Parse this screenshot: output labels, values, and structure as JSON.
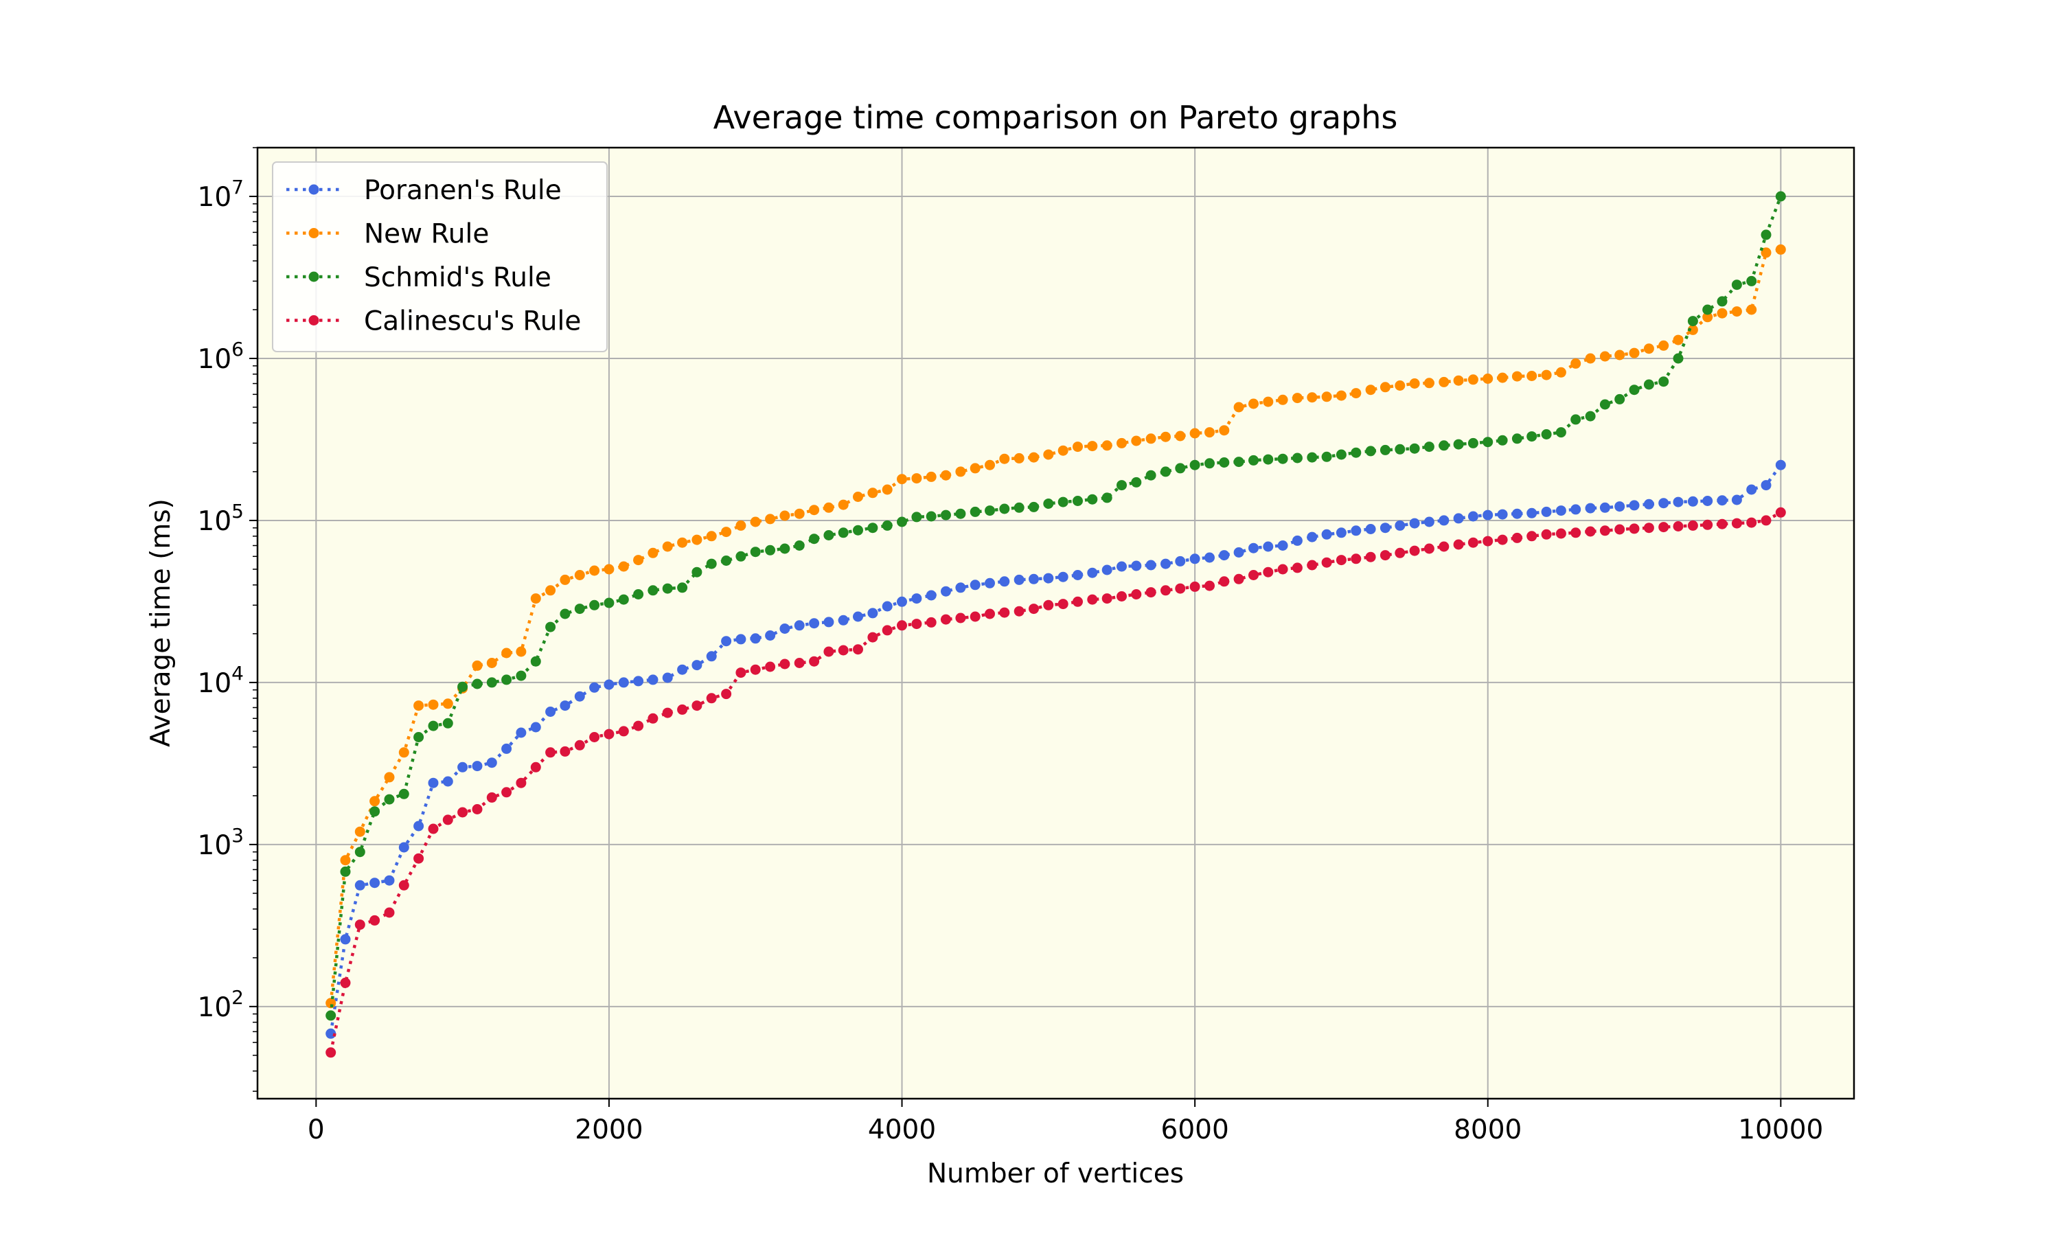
{
  "chart_data": {
    "type": "line",
    "title": "Average time comparison on Pareto graphs",
    "xlabel": "Number of vertices",
    "ylabel": "Average time (ms)",
    "y_scale": "log",
    "xlim": [
      -400,
      10500
    ],
    "ylim": [
      27,
      20000000
    ],
    "x_ticks": [
      0,
      2000,
      4000,
      6000,
      8000,
      10000
    ],
    "x_tick_labels": [
      "0",
      "2000",
      "4000",
      "6000",
      "8000",
      "10000"
    ],
    "y_ticks": [
      100,
      1000,
      10000,
      100000,
      1000000,
      10000000
    ],
    "y_tick_labels": [
      {
        "base": "10",
        "exp": "2"
      },
      {
        "base": "10",
        "exp": "3"
      },
      {
        "base": "10",
        "exp": "4"
      },
      {
        "base": "10",
        "exp": "5"
      },
      {
        "base": "10",
        "exp": "6"
      },
      {
        "base": "10",
        "exp": "7"
      }
    ],
    "grid": true,
    "legend_position": "top-left",
    "plot_background": "#fdfdeb",
    "x": [
      100,
      200,
      300,
      400,
      500,
      600,
      700,
      800,
      900,
      1000,
      1100,
      1200,
      1300,
      1400,
      1500,
      1600,
      1700,
      1800,
      1900,
      2000,
      2100,
      2200,
      2300,
      2400,
      2500,
      2600,
      2700,
      2800,
      2900,
      3000,
      3100,
      3200,
      3300,
      3400,
      3500,
      3600,
      3700,
      3800,
      3900,
      4000,
      4100,
      4200,
      4300,
      4400,
      4500,
      4600,
      4700,
      4800,
      4900,
      5000,
      5100,
      5200,
      5300,
      5400,
      5500,
      5600,
      5700,
      5800,
      5900,
      6000,
      6100,
      6200,
      6300,
      6400,
      6500,
      6600,
      6700,
      6800,
      6900,
      7000,
      7100,
      7200,
      7300,
      7400,
      7500,
      7600,
      7700,
      7800,
      7900,
      8000,
      8100,
      8200,
      8300,
      8400,
      8500,
      8600,
      8700,
      8800,
      8900,
      9000,
      9100,
      9200,
      9300,
      9400,
      9500,
      9600,
      9700,
      9800,
      9900,
      10000
    ],
    "series": [
      {
        "name": "Poranen's Rule",
        "color": "#4169e1",
        "values": [
          68,
          260,
          560,
          580,
          600,
          960,
          1300,
          2400,
          2450,
          3000,
          3050,
          3200,
          3900,
          4900,
          5300,
          6600,
          7200,
          8200,
          9300,
          9700,
          10000,
          10200,
          10400,
          10700,
          12000,
          12800,
          14500,
          18000,
          18500,
          18700,
          19500,
          21500,
          22500,
          23200,
          23600,
          24200,
          25500,
          26800,
          29500,
          31500,
          33000,
          34500,
          36500,
          38500,
          40000,
          41000,
          42000,
          43000,
          43500,
          44000,
          44800,
          46000,
          47500,
          49500,
          52000,
          52500,
          53000,
          54000,
          56000,
          58000,
          59000,
          61000,
          63500,
          67500,
          69000,
          70000,
          75000,
          79000,
          82000,
          84000,
          86500,
          88500,
          90000,
          93000,
          96000,
          98000,
          100000,
          103000,
          106000,
          108000,
          109000,
          110000,
          111000,
          113000,
          115000,
          117000,
          119000,
          120000,
          122000,
          124000,
          126000,
          128000,
          130000,
          131000,
          132000,
          133000,
          134000,
          155000,
          165000,
          220000
        ]
      },
      {
        "name": "New Rule",
        "color": "#ff8c00",
        "values": [
          105,
          800,
          1200,
          1850,
          2600,
          3700,
          7200,
          7300,
          7400,
          9200,
          12700,
          13200,
          15200,
          15500,
          33000,
          37000,
          43000,
          46000,
          49000,
          50000,
          52000,
          57000,
          63000,
          69000,
          73000,
          76000,
          80000,
          85000,
          93000,
          98000,
          102000,
          107000,
          110000,
          116000,
          120000,
          125000,
          140000,
          148000,
          155000,
          180000,
          182000,
          186000,
          190000,
          200000,
          210000,
          220000,
          240000,
          242000,
          245000,
          255000,
          270000,
          285000,
          288000,
          290000,
          300000,
          310000,
          320000,
          328000,
          332000,
          345000,
          350000,
          360000,
          500000,
          525000,
          540000,
          555000,
          570000,
          575000,
          580000,
          590000,
          610000,
          640000,
          665000,
          680000,
          700000,
          705000,
          715000,
          730000,
          740000,
          750000,
          760000,
          775000,
          780000,
          790000,
          820000,
          930000,
          1000000,
          1030000,
          1050000,
          1080000,
          1150000,
          1200000,
          1300000,
          1500000,
          1800000,
          1900000,
          1950000,
          2000000,
          4500000,
          4700000
        ]
      },
      {
        "name": "Schmid's Rule",
        "color": "#228b22",
        "values": [
          88,
          680,
          900,
          1600,
          1900,
          2050,
          4600,
          5400,
          5600,
          9400,
          9800,
          10000,
          10400,
          11000,
          13500,
          22000,
          26500,
          28500,
          30000,
          31000,
          32500,
          35000,
          37000,
          38000,
          38500,
          48000,
          54000,
          56500,
          60000,
          64000,
          65500,
          67000,
          70000,
          77000,
          81000,
          84000,
          87000,
          90000,
          93000,
          98000,
          105000,
          106000,
          108000,
          110000,
          113000,
          115000,
          118000,
          120000,
          121000,
          127000,
          130000,
          132000,
          135000,
          138000,
          165000,
          172000,
          190000,
          200000,
          210000,
          220000,
          225000,
          228000,
          230000,
          235000,
          238000,
          240000,
          243000,
          245000,
          247000,
          255000,
          262000,
          268000,
          272000,
          275000,
          278000,
          285000,
          290000,
          295000,
          300000,
          305000,
          312000,
          320000,
          330000,
          340000,
          350000,
          420000,
          440000,
          520000,
          560000,
          640000,
          690000,
          720000,
          1000000,
          1700000,
          2000000,
          2250000,
          2850000,
          3000000,
          5800000,
          10000000
        ]
      },
      {
        "name": "Calinescu's Rule",
        "color": "#dc143c",
        "values": [
          52,
          140,
          320,
          340,
          380,
          560,
          820,
          1250,
          1420,
          1580,
          1650,
          1950,
          2100,
          2400,
          3000,
          3700,
          3750,
          4100,
          4600,
          4800,
          5000,
          5400,
          6000,
          6500,
          6800,
          7200,
          8000,
          8500,
          11500,
          12000,
          12500,
          13000,
          13200,
          13500,
          15500,
          15800,
          16000,
          19000,
          21000,
          22500,
          23000,
          23500,
          24500,
          25000,
          25500,
          26500,
          27000,
          27500,
          28500,
          30000,
          30500,
          31500,
          32500,
          33000,
          34000,
          35000,
          36000,
          37000,
          38000,
          39000,
          39500,
          42000,
          43500,
          46000,
          48000,
          50000,
          51000,
          53000,
          55000,
          57000,
          58000,
          59500,
          61000,
          63000,
          65000,
          67000,
          69000,
          71000,
          73000,
          74500,
          76000,
          78000,
          80000,
          82000,
          83000,
          84000,
          85500,
          86500,
          88000,
          89000,
          90000,
          91000,
          92000,
          93000,
          94000,
          95000,
          96000,
          97000,
          100000,
          112000
        ]
      }
    ]
  }
}
